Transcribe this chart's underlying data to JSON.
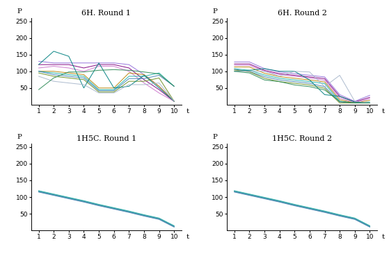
{
  "titles": [
    "6H. Round 1",
    "6H. Round 2",
    "1H5C. Round 1",
    "1H5C. Round 2"
  ],
  "xlabel": "t",
  "ylabel": "P",
  "ylim": [
    0,
    260
  ],
  "yticks": [
    50,
    100,
    150,
    200,
    250
  ],
  "xticks": [
    1,
    2,
    3,
    4,
    5,
    6,
    7,
    8,
    9,
    10
  ],
  "6h_round1": [
    [
      130,
      125,
      125,
      125,
      125,
      125,
      120,
      90,
      55,
      10
    ],
    [
      120,
      120,
      120,
      110,
      120,
      120,
      110,
      75,
      45,
      10
    ],
    [
      110,
      115,
      110,
      100,
      115,
      115,
      100,
      65,
      35,
      10
    ],
    [
      100,
      100,
      95,
      90,
      50,
      50,
      95,
      90,
      55,
      10
    ],
    [
      100,
      95,
      90,
      85,
      45,
      45,
      85,
      85,
      95,
      55
    ],
    [
      100,
      90,
      85,
      80,
      42,
      42,
      78,
      78,
      88,
      55
    ],
    [
      95,
      85,
      80,
      75,
      38,
      38,
      70,
      70,
      80,
      10
    ],
    [
      120,
      160,
      145,
      50,
      125,
      50,
      55,
      88,
      50,
      10
    ],
    [
      85,
      70,
      65,
      60,
      35,
      35,
      60,
      60,
      65,
      10
    ],
    [
      45,
      80,
      98,
      98,
      103,
      105,
      103,
      98,
      92,
      55
    ]
  ],
  "6h_round1_colors": [
    "#9370DB",
    "#800080",
    "#CC77CC",
    "#B8860B",
    "#20B2AA",
    "#4682B4",
    "#6B8E23",
    "#008080",
    "#A9B8CC",
    "#2E8B57"
  ],
  "6h_round2": [
    [
      128,
      128,
      108,
      98,
      93,
      88,
      83,
      30,
      10,
      28
    ],
    [
      122,
      122,
      103,
      93,
      88,
      83,
      78,
      25,
      8,
      22
    ],
    [
      118,
      118,
      100,
      90,
      85,
      80,
      73,
      20,
      5,
      18
    ],
    [
      113,
      113,
      94,
      84,
      79,
      74,
      68,
      15,
      5,
      13
    ],
    [
      108,
      103,
      89,
      79,
      74,
      69,
      63,
      10,
      5,
      8
    ],
    [
      106,
      99,
      84,
      74,
      69,
      64,
      54,
      8,
      5,
      5
    ],
    [
      104,
      99,
      79,
      69,
      64,
      59,
      49,
      5,
      5,
      5
    ],
    [
      100,
      103,
      108,
      100,
      100,
      74,
      30,
      25,
      8,
      5
    ],
    [
      100,
      100,
      100,
      85,
      100,
      98,
      54,
      88,
      10,
      5
    ],
    [
      100,
      95,
      74,
      69,
      59,
      54,
      44,
      10,
      5,
      5
    ]
  ],
  "6h_round2_colors": [
    "#9370DB",
    "#800080",
    "#CC77CC",
    "#B8860B",
    "#20B2AA",
    "#4682B4",
    "#6B8E23",
    "#008080",
    "#A9B8CC",
    "#2E8B57"
  ],
  "1h5c_round1": [
    [
      119,
      109,
      99,
      89,
      78,
      68,
      58,
      47,
      37,
      14
    ],
    [
      118,
      108,
      98,
      88,
      77,
      67,
      57,
      46,
      36,
      13
    ],
    [
      117,
      107,
      97,
      87,
      76,
      66,
      56,
      45,
      35,
      12
    ],
    [
      116,
      106,
      96,
      86,
      75,
      65,
      55,
      44,
      34,
      11
    ],
    [
      115,
      105,
      95,
      85,
      74,
      64,
      54,
      43,
      33,
      10
    ]
  ],
  "1h5c_round1_colors": [
    "#20B2AA",
    "#3AA8AA",
    "#3D9DA8",
    "#4898A6",
    "#4682B4"
  ],
  "1h5c_round2": [
    [
      119,
      109,
      99,
      89,
      78,
      68,
      58,
      47,
      37,
      14
    ],
    [
      118,
      108,
      98,
      88,
      77,
      67,
      57,
      46,
      36,
      13
    ],
    [
      117,
      107,
      97,
      87,
      76,
      66,
      56,
      45,
      35,
      12
    ],
    [
      116,
      106,
      96,
      86,
      75,
      65,
      55,
      44,
      34,
      11
    ],
    [
      115,
      105,
      95,
      85,
      74,
      64,
      54,
      43,
      33,
      10
    ]
  ],
  "1h5c_round2_colors": [
    "#20B2AA",
    "#3AA8AA",
    "#3D9DA8",
    "#4898A6",
    "#4682B4"
  ],
  "title_fontsize": 8,
  "tick_fontsize": 6.5,
  "label_fontsize": 7.5,
  "linewidth_6h": 0.75,
  "linewidth_1h5c": 0.75
}
